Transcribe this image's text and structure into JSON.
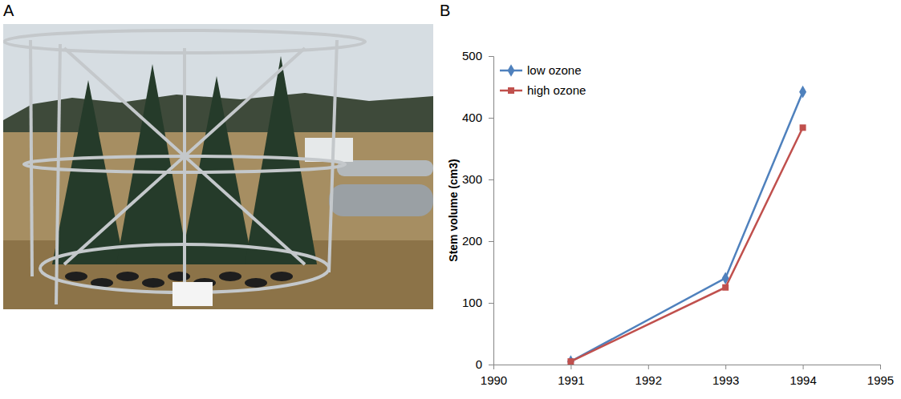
{
  "photo": {
    "label": "A"
  },
  "chart_data": {
    "type": "line",
    "panel_label": "B",
    "y_label": "Stem volume (cm3)",
    "x": [
      1991,
      1993,
      1994
    ],
    "series": [
      {
        "name": "low ozone",
        "color": "#4f81bd",
        "marker": "diamond",
        "values": [
          5,
          140,
          442
        ]
      },
      {
        "name": "high ozone",
        "color": "#c0504d",
        "marker": "square",
        "values": [
          5,
          125,
          384
        ]
      }
    ],
    "xlim": [
      1990,
      1995
    ],
    "xticks": [
      1990,
      1991,
      1992,
      1993,
      1994,
      1995
    ],
    "ylim": [
      0,
      500
    ],
    "yticks": [
      0,
      100,
      200,
      300,
      400,
      500
    ],
    "grid": false,
    "legend": "upper left"
  }
}
